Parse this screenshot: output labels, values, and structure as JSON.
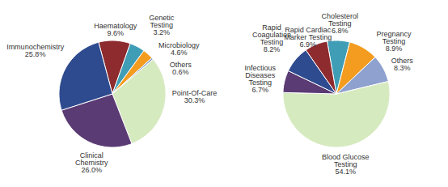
{
  "chart_data": [
    {
      "type": "pie",
      "categories": [
        "Haematology",
        "Microbiology",
        "Genetic Testing",
        "Others",
        "Point-Of-Care",
        "Clinical Chemistry",
        "Immunochemistry"
      ],
      "values": [
        9.6,
        4.6,
        3.2,
        0.6,
        30.3,
        26.0,
        25.8
      ],
      "value_labels": [
        "9.6%",
        "4.6%",
        "3.2%",
        "0.6%",
        "30.3%",
        "26.0%",
        "25.8%"
      ],
      "colors": [
        "#8e2b2e",
        "#3f9db5",
        "#f39c1f",
        "#8ea1cf",
        "#d6eabf",
        "#5b3b74",
        "#2e4b8f"
      ],
      "data_labels": true
    },
    {
      "type": "pie",
      "categories": [
        "Cholesterol Testing",
        "Pregnancy Testing",
        "Others",
        "Blood Glucose Testing",
        "Infectious Diseases Testing",
        "Rapid Coagulation Testing",
        "Rapid Cardiac Marker Testing"
      ],
      "values": [
        6.8,
        8.9,
        8.3,
        54.1,
        6.7,
        8.2,
        6.9
      ],
      "value_labels": [
        "6.8%",
        "8.9%",
        "8.3%",
        "54.1%",
        "6.7%",
        "8.2%",
        "6.9%"
      ],
      "colors": [
        "#3f9db5",
        "#f39c1f",
        "#8ea1cf",
        "#d6eabf",
        "#5b3b74",
        "#2e4b8f",
        "#8e2b2e"
      ],
      "data_labels": true
    }
  ]
}
